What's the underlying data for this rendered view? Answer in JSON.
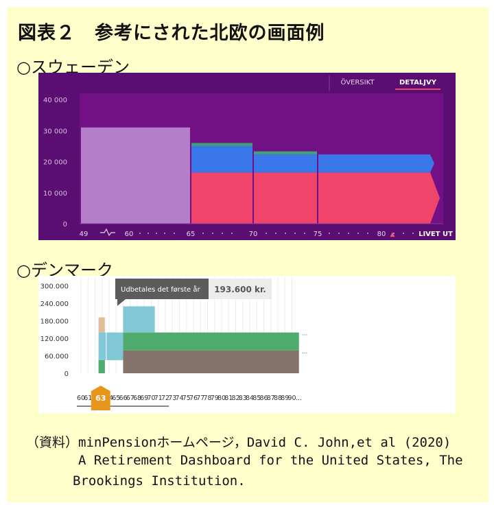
{
  "title": "図表２　参考にされた北欧の画面例",
  "sections": {
    "sweden": "○スウェーデン",
    "denmark": "○デンマーク"
  },
  "source": {
    "line1": "（資料）minPensionホームページ，David C. John,et al (2020)",
    "line2": "A Retirement Dashboard for the United States, The",
    "line3": "Brookings Institution."
  },
  "colors": {
    "se_bg": "#5a0e72",
    "se_plot": "#721085",
    "se_lavender": "#b47ec8",
    "se_red": "#f0456a",
    "se_blue": "#3a77ea",
    "se_green": "#3fa07a",
    "dk_teal": "#82c7d6",
    "dk_green": "#4faa6e",
    "dk_brown": "#86736b",
    "dk_tan": "#dfbe98",
    "dk_orange": "#e8951b"
  },
  "chart_data": [
    {
      "type": "area",
      "tabs": [
        "ÖVERSIKT",
        "DETALJVY"
      ],
      "active_tab": "DETALJVY",
      "x_tick_labels": [
        "49",
        "60",
        "65",
        "70",
        "75",
        "80",
        "LIVET UT"
      ],
      "y_ticks": [
        "0",
        "10 000",
        "20 000",
        "30 000",
        "40 000"
      ],
      "ylim": [
        0,
        42000
      ],
      "x_break": "49–60",
      "marker": "▲",
      "segments": [
        {
          "from": "60",
          "to": "65",
          "layers": [
            31000
          ]
        },
        {
          "from": "65",
          "to": "70",
          "layers": [
            16500,
            8500,
            1000
          ]
        },
        {
          "from": "70",
          "to": "75",
          "layers": [
            16500,
            5800,
            1000
          ]
        },
        {
          "from": "75",
          "to": "LIVET UT",
          "layers": [
            16500,
            5800
          ]
        }
      ]
    },
    {
      "type": "bar",
      "tooltip_label": "Udbetales det første år",
      "tooltip_value": "193.600 kr.",
      "y_ticks": [
        "0",
        "60.000",
        "120.000",
        "180.000",
        "240.000",
        "300.000"
      ],
      "ylim": [
        0,
        330000
      ],
      "x_start": 60,
      "x_end": 90,
      "x_suffix": "...",
      "selected_age": "63",
      "blocks": [
        {
          "from": 62.5,
          "to": 63.4,
          "base": 0,
          "top": 45000,
          "series": "green"
        },
        {
          "from": 62.5,
          "to": 66.0,
          "base": 45000,
          "top": 140000,
          "series": "teal"
        },
        {
          "from": 62.5,
          "to": 63.4,
          "base": 140000,
          "top": 192000,
          "series": "tan"
        },
        {
          "from": 66.0,
          "to": 91.0,
          "base": 0,
          "top": 78000,
          "series": "brown"
        },
        {
          "from": 66.0,
          "to": 91.0,
          "base": 78000,
          "top": 140000,
          "series": "green"
        },
        {
          "from": 66.0,
          "to": 70.5,
          "base": 140000,
          "top": 230000,
          "series": "teal"
        }
      ]
    }
  ]
}
